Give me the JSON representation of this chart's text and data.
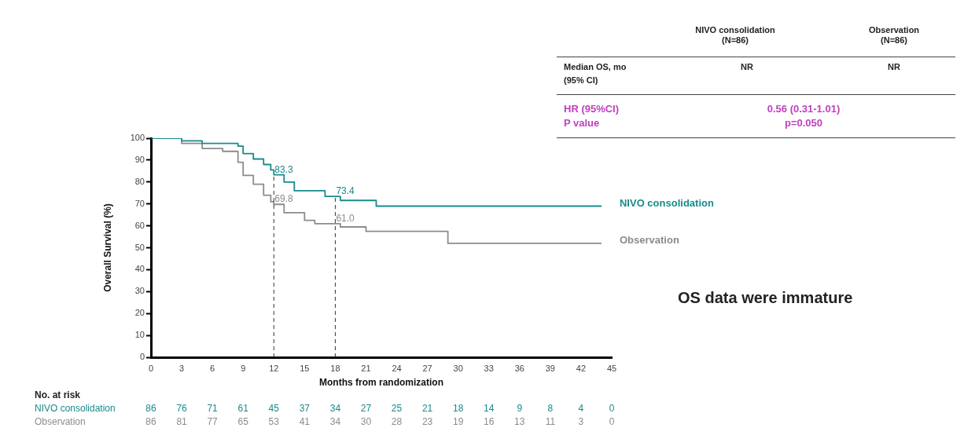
{
  "chart_data": {
    "type": "step",
    "xlabel": "Months from randomization",
    "ylabel": "Overall Survival (%)",
    "xlim": [
      0,
      45
    ],
    "xticks": [
      0,
      3,
      6,
      9,
      12,
      15,
      18,
      21,
      24,
      27,
      30,
      33,
      36,
      39,
      42,
      45
    ],
    "ylim": [
      0,
      100
    ],
    "yticks": [
      0,
      10,
      20,
      30,
      40,
      50,
      60,
      70,
      80,
      90,
      100
    ],
    "series": [
      {
        "name": "NIVO consolidation",
        "color": "#1a8a8a",
        "x": [
          0,
          3,
          5,
          8.5,
          9,
          10,
          11,
          11.7,
          12,
          13,
          14,
          17,
          18.5,
          22,
          44
        ],
        "values": [
          100,
          98.8,
          97.6,
          96.4,
          93,
          90.5,
          88,
          85.5,
          83.3,
          80,
          76,
          73.4,
          71.6,
          69,
          69
        ]
      },
      {
        "name": "Observation",
        "color": "#8c8c8c",
        "x": [
          0,
          3,
          5,
          7,
          8.5,
          9,
          10,
          11,
          11.7,
          12,
          13,
          15,
          16,
          18.5,
          21,
          29,
          44
        ],
        "values": [
          100,
          97.6,
          95.3,
          94,
          89,
          83,
          79,
          74,
          71,
          69.8,
          66,
          62.5,
          61,
          59.5,
          57.5,
          52,
          52
        ]
      }
    ],
    "ref_lines": [
      {
        "axis": "x",
        "value": 12,
        "line_style": "dashed",
        "color": "#333333"
      },
      {
        "axis": "x",
        "value": 18,
        "line_style": "dashed",
        "color": "#333333"
      }
    ],
    "annotations": [
      "83.3",
      "69.8",
      "73.4",
      "61.0",
      "OS data were immature",
      "No. at risk",
      "NIVO consolidation",
      "86 76 71 61 45 37 34 27 25 21 18 14 9 8 4 0",
      "Observation",
      "86 81 77 65 53 41 34 30 28 23 19 16 13 11 3 0",
      "NIVO consolidation",
      "(N=86)",
      "Observation",
      "(N=86)",
      "Median OS, mo",
      "(95% CI)",
      "NR",
      "NR",
      "HR (95%CI)",
      "P value",
      "0.56 (0.31-1.01)",
      "p=0.050"
    ],
    "grid": false,
    "legend": false,
    "line_style": "solid"
  }
}
